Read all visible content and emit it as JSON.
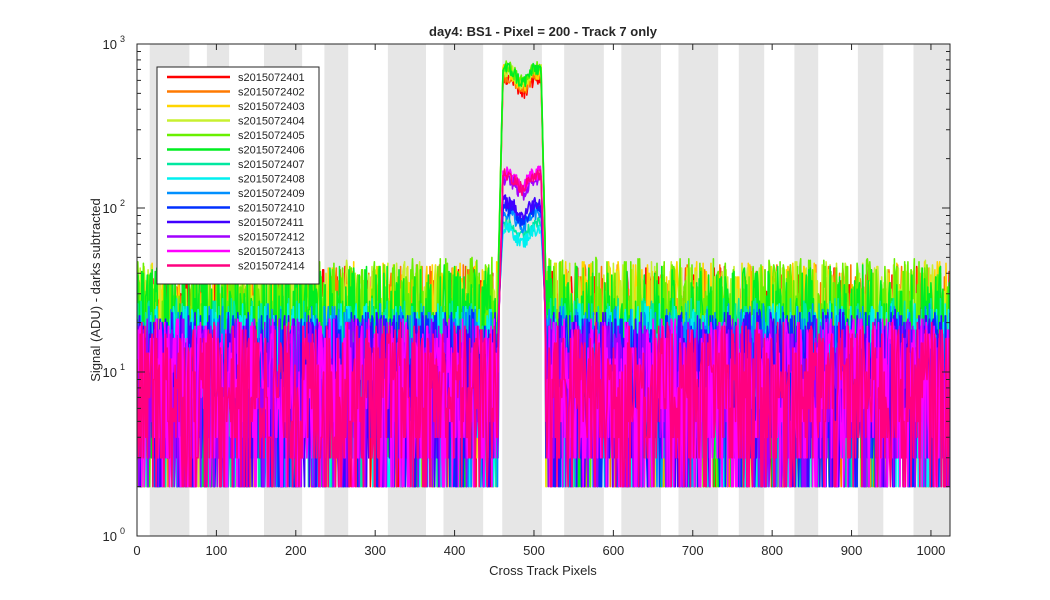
{
  "chart_data": {
    "type": "line",
    "title": "day4: BS1 - Pixel = 200 - Track 7 only",
    "xlabel": "Cross Track Pixels",
    "ylabel": "Signal (ADU) - darks subtracted",
    "xlim": [
      0,
      1024
    ],
    "ylim": [
      1,
      1000
    ],
    "yscale": "log",
    "grid": false,
    "legend_position": "top-left",
    "x_ticks": [
      "0",
      "100",
      "200",
      "300",
      "400",
      "500",
      "600",
      "700",
      "800",
      "900",
      "1000"
    ],
    "x_tick_values": [
      0,
      100,
      200,
      300,
      400,
      500,
      600,
      700,
      800,
      900,
      1000
    ],
    "y_ticks": [
      {
        "base": "10",
        "exp": "0"
      },
      {
        "base": "10",
        "exp": "1"
      },
      {
        "base": "10",
        "exp": "2"
      },
      {
        "base": "10",
        "exp": "3"
      }
    ],
    "y_tick_values": [
      1,
      10,
      100,
      1000
    ],
    "shaded_bands": [
      [
        16,
        66
      ],
      [
        88,
        116
      ],
      [
        160,
        208
      ],
      [
        236,
        266
      ],
      [
        316,
        364
      ],
      [
        386,
        436
      ],
      [
        460,
        510
      ],
      [
        538,
        588
      ],
      [
        610,
        660
      ],
      [
        682,
        732
      ],
      [
        758,
        790
      ],
      [
        828,
        858
      ],
      [
        908,
        940
      ],
      [
        978,
        1024
      ]
    ],
    "series": [
      {
        "name": "s2015072401",
        "color": "#ff0000",
        "peak": 620,
        "edge": 35
      },
      {
        "name": "s2015072402",
        "color": "#ff7a00",
        "peak": 640,
        "edge": 36
      },
      {
        "name": "s2015072403",
        "color": "#ffd500",
        "peak": 680,
        "edge": 38
      },
      {
        "name": "s2015072404",
        "color": "#c8f030",
        "peak": 700,
        "edge": 38
      },
      {
        "name": "s2015072405",
        "color": "#6af000",
        "peak": 720,
        "edge": 40
      },
      {
        "name": "s2015072406",
        "color": "#00ee20",
        "peak": 710,
        "edge": 36
      },
      {
        "name": "s2015072407",
        "color": "#00e8a0",
        "peak": 80,
        "edge": 22
      },
      {
        "name": "s2015072408",
        "color": "#00f0f0",
        "peak": 75,
        "edge": 20
      },
      {
        "name": "s2015072409",
        "color": "#0090ff",
        "peak": 95,
        "edge": 20
      },
      {
        "name": "s2015072410",
        "color": "#0030ff",
        "peak": 100,
        "edge": 18
      },
      {
        "name": "s2015072411",
        "color": "#4000ff",
        "peak": 110,
        "edge": 18
      },
      {
        "name": "s2015072412",
        "color": "#a000ff",
        "peak": 150,
        "edge": 16
      },
      {
        "name": "s2015072413",
        "color": "#ff00ff",
        "peak": 165,
        "edge": 16
      },
      {
        "name": "s2015072414",
        "color": "#ff0080",
        "peak": 160,
        "edge": 15
      }
    ],
    "bump_region": [
      455,
      515
    ]
  }
}
